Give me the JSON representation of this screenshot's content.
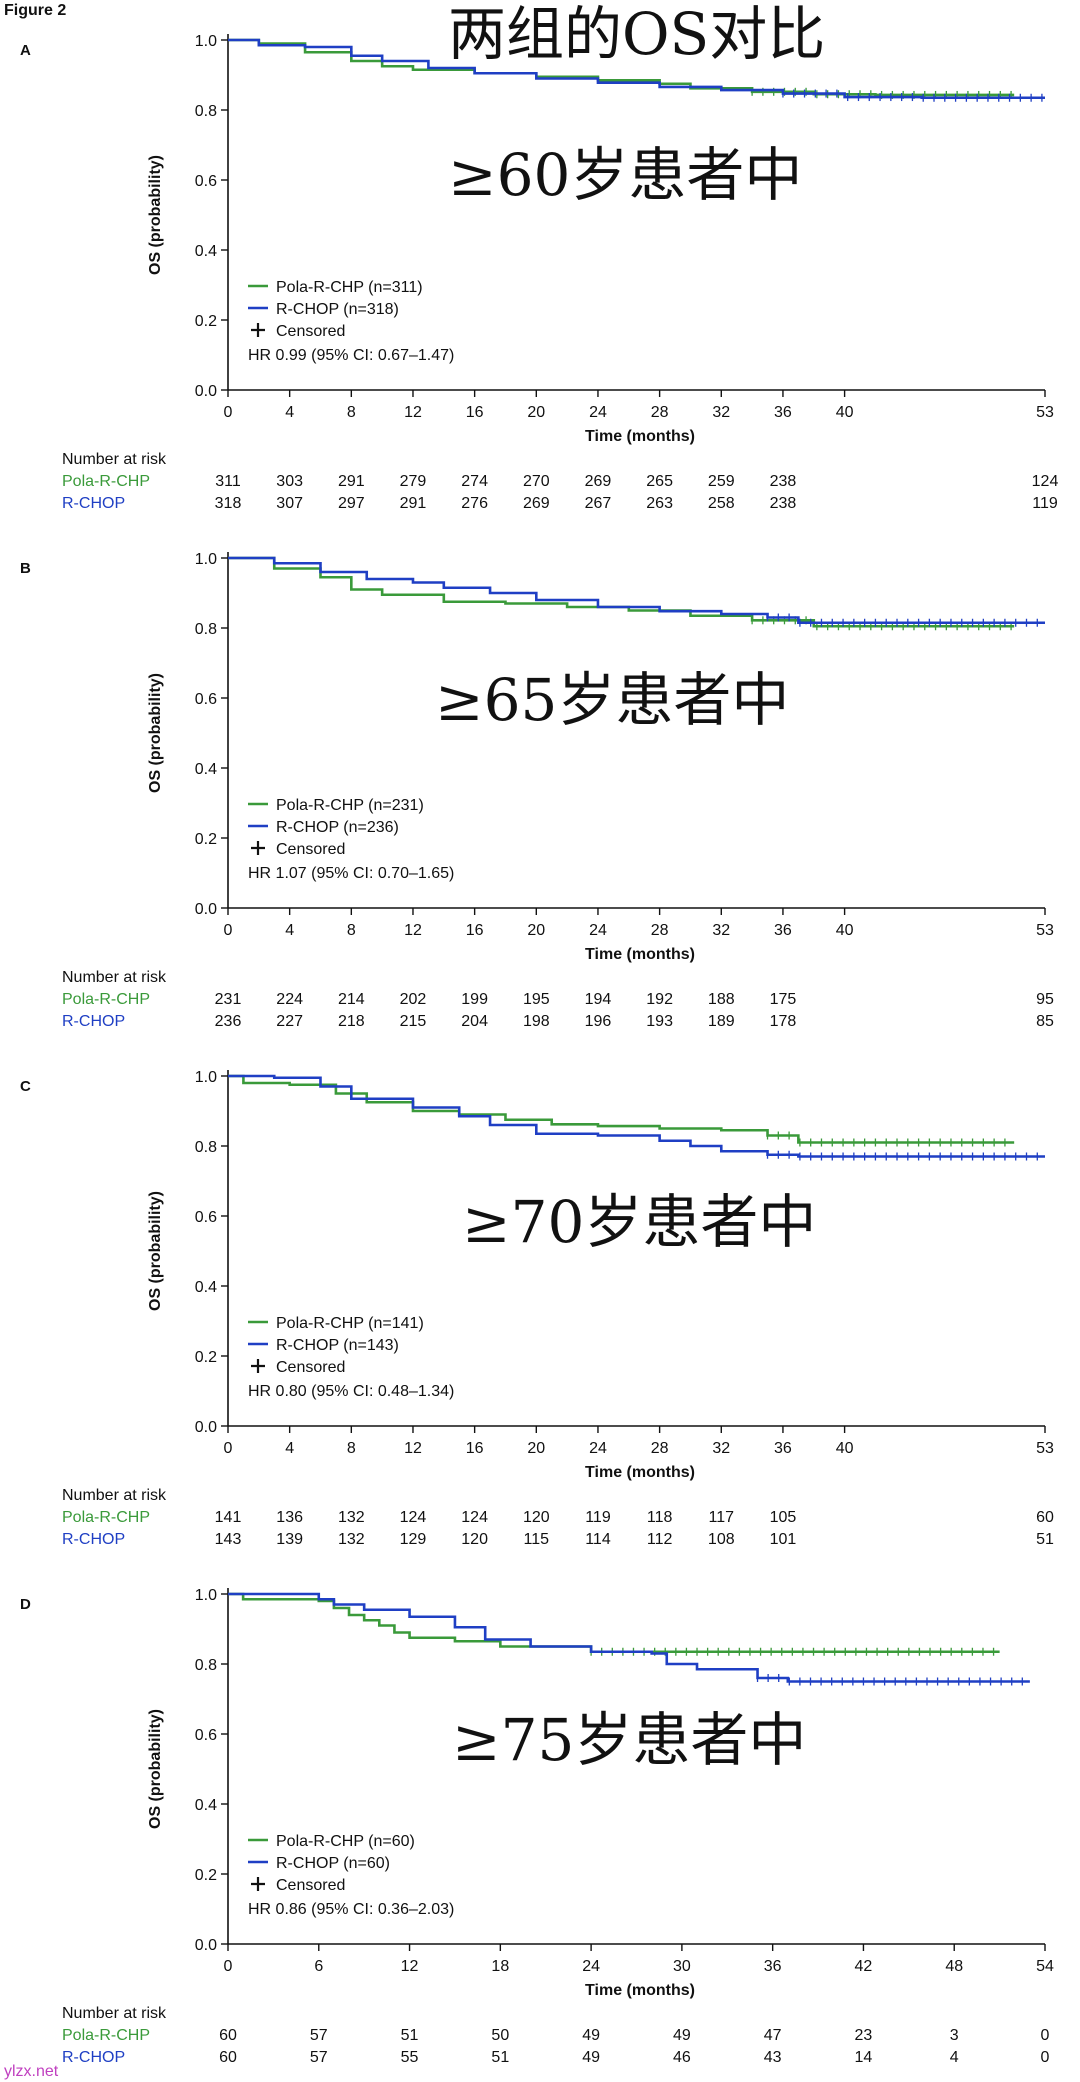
{
  "figure_title": "Figure 2",
  "header_text": "两组的OS对比",
  "colors": {
    "pola": "#3a9a3a",
    "rchop": "#1f3fc4",
    "axis": "#111111",
    "text": "#111111"
  },
  "labels": {
    "number_at_risk": "Number at risk",
    "pola_row": "Pola-R-CHP",
    "rchop_row": "R-CHOP",
    "censored": "Censored"
  },
  "watermark": "ylzx.net",
  "chart_data": [
    {
      "type": "line",
      "panel": "A",
      "overlay": "≥60岁患者中",
      "xlabel": "Time (months)",
      "ylabel": "OS (probability)",
      "xticks": [
        0,
        4,
        8,
        12,
        16,
        20,
        24,
        28,
        32,
        36,
        40,
        53
      ],
      "yticks": [
        "0.0",
        "0.2",
        "0.4",
        "0.6",
        "0.8",
        "1.0"
      ],
      "xlim": [
        0,
        53
      ],
      "ylim": [
        0,
        1
      ],
      "legend": [
        "Pola-R-CHP (n=311)",
        "R-CHOP (n=318)"
      ],
      "hr": "HR 0.99 (95% CI: 0.67–1.47)",
      "series": [
        {
          "name": "Pola-R-CHP",
          "points": [
            [
              0,
              1.0
            ],
            [
              2,
              0.99
            ],
            [
              5,
              0.965
            ],
            [
              8,
              0.94
            ],
            [
              10,
              0.925
            ],
            [
              12,
              0.915
            ],
            [
              16,
              0.905
            ],
            [
              20,
              0.895
            ],
            [
              24,
              0.885
            ],
            [
              28,
              0.875
            ],
            [
              30,
              0.862
            ],
            [
              34,
              0.852
            ],
            [
              38,
              0.845
            ],
            [
              42,
              0.843
            ],
            [
              46,
              0.843
            ],
            [
              51,
              0.843
            ]
          ]
        },
        {
          "name": "R-CHOP",
          "points": [
            [
              0,
              1.0
            ],
            [
              2,
              0.985
            ],
            [
              5,
              0.98
            ],
            [
              8,
              0.955
            ],
            [
              10,
              0.94
            ],
            [
              13,
              0.92
            ],
            [
              16,
              0.905
            ],
            [
              20,
              0.89
            ],
            [
              24,
              0.878
            ],
            [
              28,
              0.866
            ],
            [
              32,
              0.857
            ],
            [
              36,
              0.847
            ],
            [
              40,
              0.837
            ],
            [
              45,
              0.835
            ],
            [
              50,
              0.835
            ],
            [
              53,
              0.835
            ]
          ]
        }
      ],
      "risk": {
        "x": [
          0,
          4,
          8,
          12,
          16,
          20,
          24,
          28,
          32,
          36,
          40,
          53
        ],
        "pola": [
          311,
          303,
          291,
          279,
          274,
          270,
          269,
          265,
          259,
          238,
          124
        ],
        "pola_x": [
          0,
          4,
          8,
          12,
          16,
          20,
          24,
          28,
          32,
          36,
          53
        ],
        "rchop": [
          318,
          307,
          297,
          291,
          276,
          269,
          267,
          263,
          258,
          238,
          119
        ],
        "rchop_x": [
          0,
          4,
          8,
          12,
          16,
          20,
          24,
          28,
          32,
          36,
          53
        ]
      }
    },
    {
      "type": "line",
      "panel": "B",
      "overlay": "≥65岁患者中",
      "xlabel": "Time (months)",
      "ylabel": "OS (probability)",
      "xticks": [
        0,
        4,
        8,
        12,
        16,
        20,
        24,
        28,
        32,
        36,
        40,
        53
      ],
      "yticks": [
        "0.0",
        "0.2",
        "0.4",
        "0.6",
        "0.8",
        "1.0"
      ],
      "xlim": [
        0,
        53
      ],
      "ylim": [
        0,
        1
      ],
      "legend": [
        "Pola-R-CHP (n=231)",
        "R-CHOP (n=236)"
      ],
      "hr": "HR 1.07 (95% CI: 0.70–1.65)",
      "series": [
        {
          "name": "Pola-R-CHP",
          "points": [
            [
              0,
              1.0
            ],
            [
              3,
              0.97
            ],
            [
              6,
              0.945
            ],
            [
              8,
              0.91
            ],
            [
              10,
              0.895
            ],
            [
              14,
              0.875
            ],
            [
              18,
              0.87
            ],
            [
              22,
              0.86
            ],
            [
              26,
              0.85
            ],
            [
              30,
              0.835
            ],
            [
              34,
              0.822
            ],
            [
              38,
              0.805
            ],
            [
              42,
              0.805
            ],
            [
              46,
              0.805
            ],
            [
              51,
              0.805
            ]
          ]
        },
        {
          "name": "R-CHOP",
          "points": [
            [
              0,
              1.0
            ],
            [
              3,
              0.985
            ],
            [
              6,
              0.96
            ],
            [
              9,
              0.94
            ],
            [
              12,
              0.93
            ],
            [
              14,
              0.915
            ],
            [
              17,
              0.9
            ],
            [
              20,
              0.88
            ],
            [
              24,
              0.86
            ],
            [
              28,
              0.848
            ],
            [
              32,
              0.84
            ],
            [
              35,
              0.83
            ],
            [
              37,
              0.815
            ],
            [
              40,
              0.815
            ],
            [
              46,
              0.815
            ],
            [
              53,
              0.815
            ]
          ]
        }
      ],
      "risk": {
        "pola": [
          231,
          224,
          214,
          202,
          199,
          195,
          194,
          192,
          188,
          175,
          95
        ],
        "pola_x": [
          0,
          4,
          8,
          12,
          16,
          20,
          24,
          28,
          32,
          36,
          53
        ],
        "rchop": [
          236,
          227,
          218,
          215,
          204,
          198,
          196,
          193,
          189,
          178,
          85
        ],
        "rchop_x": [
          0,
          4,
          8,
          12,
          16,
          20,
          24,
          28,
          32,
          36,
          53
        ]
      }
    },
    {
      "type": "line",
      "panel": "C",
      "overlay": "≥70岁患者中",
      "xlabel": "Time (months)",
      "ylabel": "OS (probability)",
      "xticks": [
        0,
        4,
        8,
        12,
        16,
        20,
        24,
        28,
        32,
        36,
        40,
        53
      ],
      "yticks": [
        "0.0",
        "0.2",
        "0.4",
        "0.6",
        "0.8",
        "1.0"
      ],
      "xlim": [
        0,
        53
      ],
      "ylim": [
        0,
        1
      ],
      "legend": [
        "Pola-R-CHP (n=141)",
        "R-CHOP (n=143)"
      ],
      "hr": "HR 0.80 (95% CI: 0.48–1.34)",
      "series": [
        {
          "name": "Pola-R-CHP",
          "points": [
            [
              0,
              1.0
            ],
            [
              1,
              0.98
            ],
            [
              4,
              0.975
            ],
            [
              7,
              0.95
            ],
            [
              9,
              0.925
            ],
            [
              12,
              0.9
            ],
            [
              15,
              0.89
            ],
            [
              18,
              0.875
            ],
            [
              21,
              0.862
            ],
            [
              24,
              0.857
            ],
            [
              28,
              0.85
            ],
            [
              32,
              0.845
            ],
            [
              35,
              0.83
            ],
            [
              37,
              0.81
            ],
            [
              40,
              0.81
            ],
            [
              46,
              0.81
            ],
            [
              51,
              0.81
            ]
          ]
        },
        {
          "name": "R-CHOP",
          "points": [
            [
              0,
              1.0
            ],
            [
              3,
              0.995
            ],
            [
              6,
              0.97
            ],
            [
              8,
              0.935
            ],
            [
              12,
              0.91
            ],
            [
              15,
              0.885
            ],
            [
              17,
              0.86
            ],
            [
              20,
              0.835
            ],
            [
              24,
              0.83
            ],
            [
              28,
              0.815
            ],
            [
              30,
              0.8
            ],
            [
              32,
              0.785
            ],
            [
              35,
              0.775
            ],
            [
              37,
              0.77
            ],
            [
              40,
              0.77
            ],
            [
              46,
              0.77
            ],
            [
              53,
              0.77
            ]
          ]
        }
      ],
      "risk": {
        "pola": [
          141,
          136,
          132,
          124,
          124,
          120,
          119,
          118,
          117,
          105,
          60
        ],
        "pola_x": [
          0,
          4,
          8,
          12,
          16,
          20,
          24,
          28,
          32,
          36,
          53
        ],
        "rchop": [
          143,
          139,
          132,
          129,
          120,
          115,
          114,
          112,
          108,
          101,
          51
        ],
        "rchop_x": [
          0,
          4,
          8,
          12,
          16,
          20,
          24,
          28,
          32,
          36,
          53
        ]
      }
    },
    {
      "type": "line",
      "panel": "D",
      "overlay": "≥75岁患者中",
      "xlabel": "Time (months)",
      "ylabel": "OS (probability)",
      "xticks": [
        0,
        6,
        12,
        18,
        24,
        30,
        36,
        42,
        48,
        54
      ],
      "yticks": [
        "0.0",
        "0.2",
        "0.4",
        "0.6",
        "0.8",
        "1.0"
      ],
      "xlim": [
        0,
        54
      ],
      "ylim": [
        0,
        1
      ],
      "legend": [
        "Pola-R-CHP (n=60)",
        "R-CHOP (n=60)"
      ],
      "hr": "HR 0.86 (95% CI: 0.36–2.03)",
      "series": [
        {
          "name": "Pola-R-CHP",
          "points": [
            [
              0,
              1.0
            ],
            [
              1,
              0.985
            ],
            [
              6,
              0.98
            ],
            [
              7,
              0.96
            ],
            [
              8,
              0.94
            ],
            [
              9,
              0.925
            ],
            [
              10,
              0.91
            ],
            [
              11,
              0.89
            ],
            [
              12,
              0.875
            ],
            [
              15,
              0.865
            ],
            [
              18,
              0.85
            ],
            [
              24,
              0.835
            ],
            [
              30,
              0.835
            ],
            [
              36,
              0.835
            ],
            [
              42,
              0.835
            ],
            [
              51,
              0.835
            ]
          ]
        },
        {
          "name": "R-CHOP",
          "points": [
            [
              0,
              1.0
            ],
            [
              6,
              0.985
            ],
            [
              7,
              0.97
            ],
            [
              9,
              0.955
            ],
            [
              12,
              0.935
            ],
            [
              15,
              0.905
            ],
            [
              17,
              0.87
            ],
            [
              20,
              0.85
            ],
            [
              24,
              0.835
            ],
            [
              28,
              0.83
            ],
            [
              29,
              0.8
            ],
            [
              31,
              0.785
            ],
            [
              35,
              0.76
            ],
            [
              37,
              0.75
            ],
            [
              42,
              0.75
            ],
            [
              48,
              0.75
            ],
            [
              53,
              0.75
            ]
          ]
        }
      ],
      "risk": {
        "pola": [
          60,
          57,
          51,
          50,
          49,
          49,
          47,
          23,
          3,
          0
        ],
        "pola_x": [
          0,
          6,
          12,
          18,
          24,
          30,
          36,
          42,
          48,
          54
        ],
        "rchop": [
          60,
          57,
          55,
          51,
          49,
          46,
          43,
          14,
          4,
          0
        ],
        "rchop_x": [
          0,
          6,
          12,
          18,
          24,
          30,
          36,
          42,
          48,
          54
        ]
      }
    }
  ]
}
